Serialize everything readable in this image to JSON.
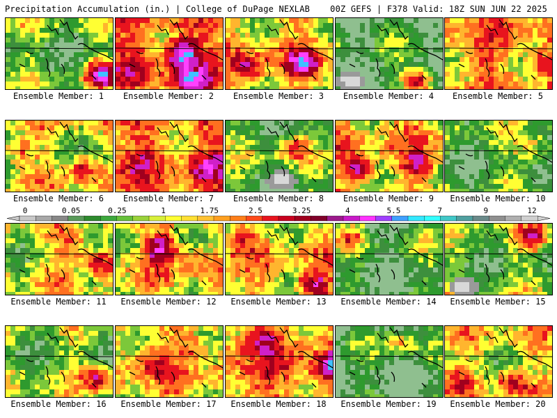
{
  "header": {
    "left": "Precipitation Accumulation (in.) | College of DuPage NEXLAB",
    "right": "00Z GEFS | F378 Valid: 18Z SUN JUN 22 2025"
  },
  "panels": [
    {
      "label": "Ensemble Member: 1",
      "base": 1.2,
      "hot": [
        [
          0.86,
          0.75,
          6
        ]
      ]
    },
    {
      "label": "Ensemble Member: 2",
      "base": 3.4,
      "hot": [
        [
          0.6,
          0.45,
          7
        ],
        [
          0.68,
          0.85,
          6
        ]
      ]
    },
    {
      "label": "Ensemble Member: 3",
      "base": 2.6,
      "hot": [
        [
          0.2,
          0.65,
          5
        ],
        [
          0.7,
          0.6,
          6
        ]
      ]
    },
    {
      "label": "Ensemble Member: 4",
      "base": 0.6,
      "hot": [
        [
          0.75,
          0.85,
          6
        ]
      ],
      "low": [
        [
          0.12,
          0.85
        ]
      ]
    },
    {
      "label": "Ensemble Member: 5",
      "base": 2.8,
      "hot": [
        [
          0.9,
          0.6,
          5
        ],
        [
          0.3,
          0.55,
          4
        ]
      ]
    },
    {
      "label": "Ensemble Member: 6",
      "base": 2.0,
      "hot": [
        [
          0.7,
          0.65,
          5
        ],
        [
          0.1,
          0.4,
          4
        ]
      ]
    },
    {
      "label": "Ensemble Member: 7",
      "base": 3.2,
      "hot": [
        [
          0.85,
          0.6,
          5
        ],
        [
          0.3,
          0.4,
          4
        ]
      ]
    },
    {
      "label": "Ensemble Member: 8",
      "base": 1.1,
      "hot": [
        [
          0.6,
          0.35,
          4
        ]
      ],
      "low": [
        [
          0.5,
          0.8
        ]
      ]
    },
    {
      "label": "Ensemble Member: 9",
      "base": 2.5,
      "hot": [
        [
          0.2,
          0.65,
          6
        ],
        [
          0.75,
          0.6,
          5
        ]
      ]
    },
    {
      "label": "Ensemble Member: 10",
      "base": 1.0,
      "hot": [
        [
          0.8,
          0.4,
          3
        ]
      ]
    },
    {
      "label": "Ensemble Member: 11",
      "base": 2.0,
      "hot": [
        [
          0.85,
          0.5,
          6
        ],
        [
          0.6,
          0.3,
          4
        ]
      ]
    },
    {
      "label": "Ensemble Member: 12",
      "base": 2.3,
      "hot": [
        [
          0.4,
          0.3,
          6
        ],
        [
          0.7,
          0.45,
          4
        ]
      ]
    },
    {
      "label": "Ensemble Member: 13",
      "base": 2.4,
      "hot": [
        [
          0.8,
          0.85,
          6
        ],
        [
          0.1,
          0.2,
          4
        ]
      ]
    },
    {
      "label": "Ensemble Member: 14",
      "base": 0.7,
      "hot": [
        [
          0.1,
          0.15,
          3
        ]
      ]
    },
    {
      "label": "Ensemble Member: 15",
      "base": 1.3,
      "hot": [
        [
          0.8,
          0.15,
          4
        ]
      ],
      "low": [
        [
          0.15,
          0.85
        ]
      ]
    },
    {
      "label": "Ensemble Member: 16",
      "base": 1.5,
      "hot": [
        [
          0.85,
          0.7,
          5
        ]
      ]
    },
    {
      "label": "Ensemble Member: 17",
      "base": 2.6,
      "hot": [
        [
          0.3,
          0.5,
          4
        ],
        [
          0.7,
          0.25,
          4
        ]
      ]
    },
    {
      "label": "Ensemble Member: 18",
      "base": 3.2,
      "hot": [
        [
          0.95,
          0.55,
          6
        ],
        [
          0.3,
          0.15,
          5
        ]
      ]
    },
    {
      "label": "Ensemble Member: 19",
      "base": 0.5,
      "hot": [
        [
          0.6,
          0.2,
          3
        ]
      ]
    },
    {
      "label": "Ensemble Member: 20",
      "base": 2.1,
      "hot": [
        [
          0.6,
          0.75,
          5
        ],
        [
          0.1,
          0.7,
          4
        ]
      ]
    }
  ],
  "colorbar": {
    "ticks": [
      "0",
      "0.05",
      "0.25",
      "1",
      "1.75",
      "2.5",
      "3.25",
      "4",
      "5.5",
      "7",
      "9",
      "12"
    ],
    "colors": [
      "#c8c8c8",
      "#a8a8a8",
      "#888888",
      "#5a9a5a",
      "#2e8b2e",
      "#3da83d",
      "#66c13a",
      "#9ad23a",
      "#d8f03a",
      "#ffff33",
      "#ffe033",
      "#ffc233",
      "#ffa020",
      "#ff7f1a",
      "#ff4a1a",
      "#e8141e",
      "#c8001e",
      "#a0001e",
      "#80002a",
      "#9c1a8c",
      "#c81ac8",
      "#ff33ff",
      "#a040ff",
      "#40a0ff",
      "#33e8ff",
      "#33ffff",
      "#40c8c8",
      "#50a0a0",
      "#6a8a8a",
      "#909090",
      "#b0b0b0",
      "#d0d0d0"
    ]
  },
  "chart_data": {
    "type": "heatmap",
    "title": "Precipitation Accumulation (in.) | College of DuPage NEXLAB",
    "subtitle": "00Z GEFS | F378 Valid: 18Z SUN JUN 22 2025",
    "layout": "4 rows x 5 columns of ensemble member maps",
    "series": [
      {
        "name": "Ensemble Member: 1"
      },
      {
        "name": "Ensemble Member: 2"
      },
      {
        "name": "Ensemble Member: 3"
      },
      {
        "name": "Ensemble Member: 4"
      },
      {
        "name": "Ensemble Member: 5"
      },
      {
        "name": "Ensemble Member: 6"
      },
      {
        "name": "Ensemble Member: 7"
      },
      {
        "name": "Ensemble Member: 8"
      },
      {
        "name": "Ensemble Member: 9"
      },
      {
        "name": "Ensemble Member: 10"
      },
      {
        "name": "Ensemble Member: 11"
      },
      {
        "name": "Ensemble Member: 12"
      },
      {
        "name": "Ensemble Member: 13"
      },
      {
        "name": "Ensemble Member: 14"
      },
      {
        "name": "Ensemble Member: 15"
      },
      {
        "name": "Ensemble Member: 16"
      },
      {
        "name": "Ensemble Member: 17"
      },
      {
        "name": "Ensemble Member: 18"
      },
      {
        "name": "Ensemble Member: 19"
      },
      {
        "name": "Ensemble Member: 20"
      }
    ],
    "colorbar_ticks": [
      0,
      0.05,
      0.25,
      1,
      1.75,
      2.5,
      3.25,
      4,
      5.5,
      7,
      9,
      12
    ],
    "legend": "horizontal color bar between rows 2 and 3"
  }
}
